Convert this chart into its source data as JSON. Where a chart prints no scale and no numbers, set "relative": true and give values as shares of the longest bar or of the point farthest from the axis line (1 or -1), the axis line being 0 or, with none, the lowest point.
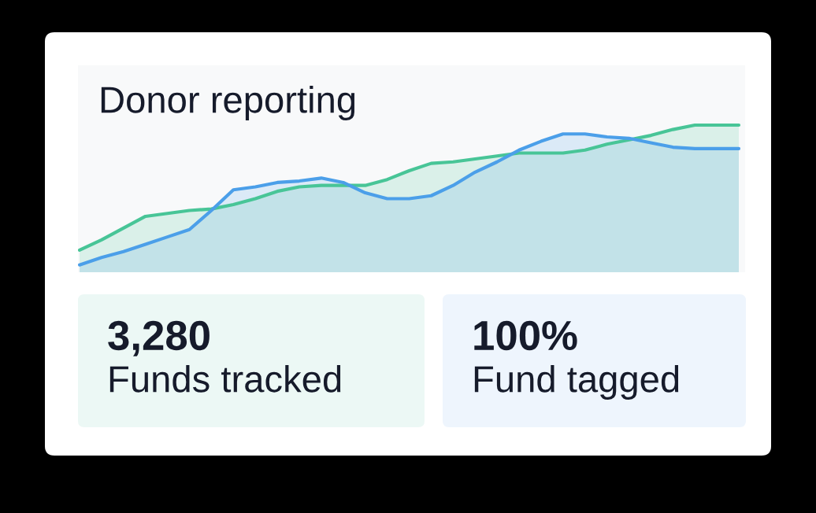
{
  "chart_data": [
    {
      "type": "area",
      "title": "Donor reporting",
      "relative": true,
      "categories": [
        null,
        null,
        null,
        null,
        null,
        null,
        null,
        null,
        null,
        null,
        null,
        null,
        null,
        null,
        null,
        null,
        null,
        null,
        null,
        null,
        null,
        null,
        null,
        null,
        null,
        null,
        null,
        null,
        null,
        null,
        null
      ],
      "series": [
        {
          "color": "#48c597",
          "values": [
            0.15,
            0.22,
            0.3,
            0.38,
            0.4,
            0.42,
            0.43,
            0.46,
            0.5,
            0.55,
            0.58,
            0.59,
            0.59,
            0.59,
            0.63,
            0.69,
            0.74,
            0.75,
            0.77,
            0.79,
            0.81,
            0.81,
            0.81,
            0.83,
            0.87,
            0.9,
            0.93,
            0.97,
            1,
            1,
            1
          ]
        },
        {
          "color": "#4b9fe9",
          "values": [
            0.05,
            0.1,
            0.14,
            0.19,
            0.24,
            0.29,
            0.42,
            0.56,
            0.58,
            0.61,
            0.62,
            0.64,
            0.61,
            0.54,
            0.5,
            0.5,
            0.52,
            0.59,
            0.68,
            0.75,
            0.83,
            0.89,
            0.94,
            0.94,
            0.92,
            0.91,
            0.88,
            0.85,
            0.84,
            0.84,
            0.84
          ]
        }
      ]
    },
    {
      "type": "other",
      "title": "3,280",
      "subtitle": "Funds tracked",
      "color": "#ecf8f5"
    },
    {
      "type": "other",
      "title": "100%",
      "subtitle": "Fund tagged",
      "color": "#eef5fd"
    }
  ]
}
